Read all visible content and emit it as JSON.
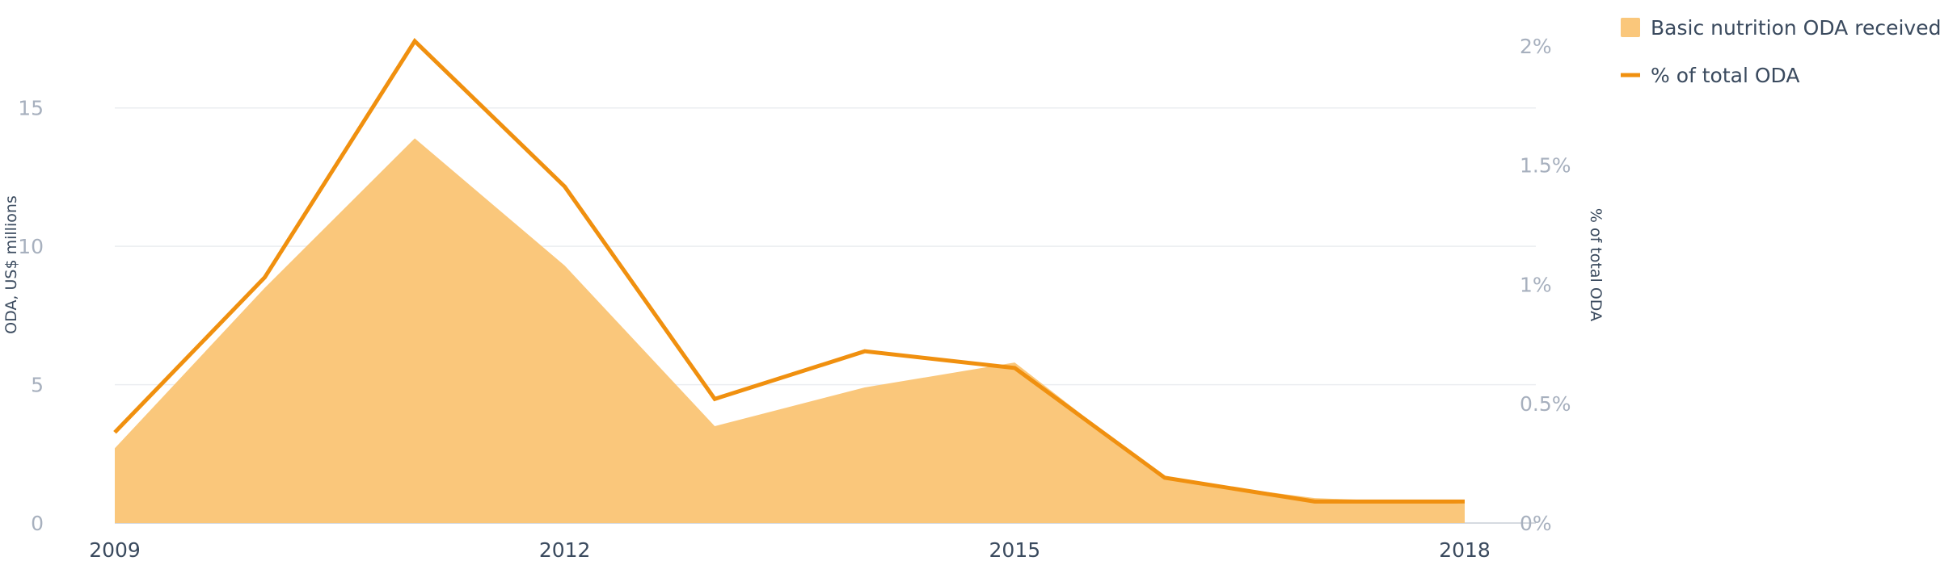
{
  "chart_data": {
    "type": "area",
    "x": [
      2009,
      2010,
      2011,
      2012,
      2013,
      2014,
      2015,
      2016,
      2017,
      2018
    ],
    "x_tick_labels": [
      "2009",
      "2012",
      "2015",
      "2018"
    ],
    "series": [
      {
        "name": "Basic nutrition ODA received",
        "type": "area",
        "axis": "left",
        "color": "#fac77b",
        "values": [
          2.7,
          8.5,
          13.9,
          9.3,
          3.5,
          4.9,
          5.8,
          1.6,
          0.9,
          0.7
        ]
      },
      {
        "name": "% of total ODA",
        "type": "line",
        "axis": "right",
        "color": "#f0900f",
        "values": [
          0.38,
          1.03,
          2.02,
          1.41,
          0.52,
          0.72,
          0.65,
          0.19,
          0.09,
          0.09
        ]
      }
    ],
    "y_left": {
      "label": "ODA, US$ millions",
      "range": [
        0,
        17.5
      ],
      "ticks": [
        0,
        5,
        10,
        15
      ],
      "tick_labels": [
        "0",
        "5",
        "10",
        "15"
      ]
    },
    "y_right": {
      "label": "% of total ODA",
      "range": [
        0,
        2.03
      ],
      "ticks": [
        0,
        0.5,
        1,
        1.5,
        2
      ],
      "tick_labels": [
        "0%",
        "0.5%",
        "1%",
        "1.5%",
        "2%"
      ]
    },
    "grid": true,
    "legend_position": "top-right"
  }
}
